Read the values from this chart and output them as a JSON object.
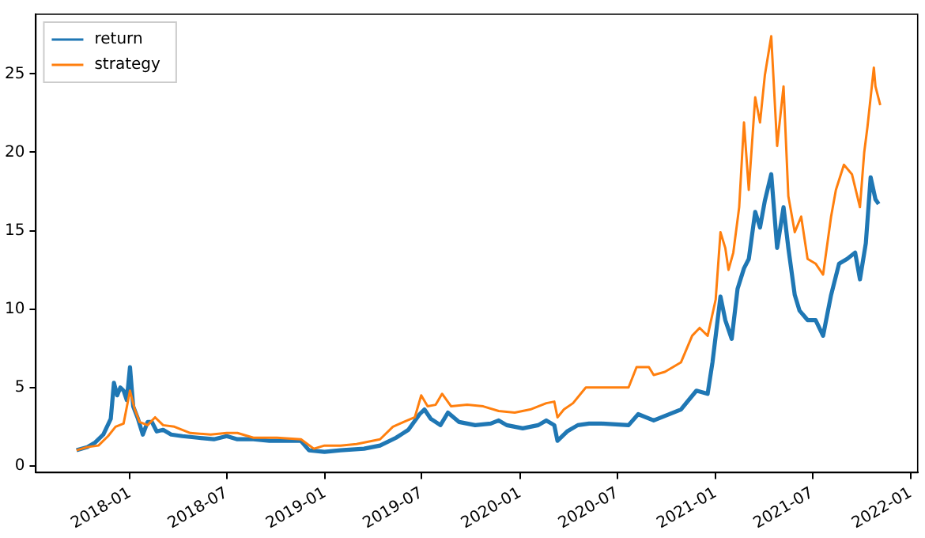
{
  "chart_data": {
    "type": "line",
    "xlim": [
      "2017-07-09",
      "2022-01-14"
    ],
    "xticks": [
      "2018-01",
      "2018-07",
      "2019-01",
      "2019-07",
      "2020-01",
      "2020-07",
      "2021-01",
      "2021-07",
      "2022-01"
    ],
    "ylim": [
      -0.43,
      28.8
    ],
    "yticks": [
      0,
      5,
      10,
      15,
      20,
      25
    ],
    "grid": false,
    "legend": "top left",
    "marker": "none",
    "line_style": "solid",
    "series": [
      {
        "name": "return",
        "color": "#1f77b4",
        "x": [
          "2017-09-23",
          "2017-10-13",
          "2017-10-28",
          "2017-11-12",
          "2017-11-26",
          "2017-12-02",
          "2017-12-08",
          "2017-12-14",
          "2017-12-20",
          "2017-12-26",
          "2018-01-01",
          "2018-01-07",
          "2018-01-16",
          "2018-01-25",
          "2018-02-03",
          "2018-02-11",
          "2018-02-20",
          "2018-03-04",
          "2018-03-19",
          "2018-04-09",
          "2018-05-08",
          "2018-06-07",
          "2018-07-01",
          "2018-07-21",
          "2018-08-20",
          "2018-09-19",
          "2018-11-17",
          "2018-12-02",
          "2018-12-31",
          "2019-01-30",
          "2019-03-15",
          "2019-04-14",
          "2019-05-14",
          "2019-06-06",
          "2019-06-27",
          "2019-07-06",
          "2019-07-18",
          "2019-08-05",
          "2019-08-19",
          "2019-09-09",
          "2019-10-09",
          "2019-11-07",
          "2019-11-22",
          "2019-12-07",
          "2020-01-06",
          "2020-02-04",
          "2020-02-19",
          "2020-03-05",
          "2020-03-11",
          "2020-03-29",
          "2020-04-18",
          "2020-05-09",
          "2020-06-02",
          "2020-07-22",
          "2020-08-09",
          "2020-09-07",
          "2020-10-28",
          "2020-11-26",
          "2020-12-17",
          "2020-12-26",
          "2021-01-10",
          "2021-01-19",
          "2021-01-31",
          "2021-02-11",
          "2021-02-23",
          "2021-03-04",
          "2021-03-16",
          "2021-03-25",
          "2021-04-03",
          "2021-04-15",
          "2021-04-26",
          "2021-05-08",
          "2021-05-17",
          "2021-05-29",
          "2021-06-07",
          "2021-06-22",
          "2021-07-07",
          "2021-07-21",
          "2021-08-05",
          "2021-08-20",
          "2021-09-04",
          "2021-09-19",
          "2021-09-28",
          "2021-10-09",
          "2021-10-18",
          "2021-10-27",
          "2021-11-02"
        ],
        "values": [
          1.0,
          1.2,
          1.5,
          2.0,
          3.0,
          5.3,
          4.5,
          5.0,
          4.8,
          4.2,
          6.3,
          3.8,
          3.0,
          2.0,
          2.8,
          2.8,
          2.2,
          2.3,
          2.0,
          1.9,
          1.8,
          1.7,
          1.9,
          1.7,
          1.7,
          1.6,
          1.6,
          1.0,
          0.9,
          1.0,
          1.1,
          1.3,
          1.8,
          2.3,
          3.3,
          3.6,
          3.0,
          2.6,
          3.4,
          2.8,
          2.6,
          2.7,
          2.9,
          2.6,
          2.4,
          2.6,
          2.9,
          2.6,
          1.6,
          2.2,
          2.6,
          2.7,
          2.7,
          2.6,
          3.3,
          2.9,
          3.6,
          4.8,
          4.6,
          6.6,
          10.8,
          9.3,
          8.1,
          11.3,
          12.6,
          13.2,
          16.2,
          15.2,
          16.9,
          18.6,
          13.9,
          16.5,
          13.9,
          10.9,
          9.9,
          9.3,
          9.3,
          8.3,
          10.9,
          12.9,
          13.2,
          13.6,
          11.9,
          14.2,
          18.4,
          17.0,
          16.7
        ]
      },
      {
        "name": "strategy",
        "color": "#ff7f0e",
        "x": [
          "2017-09-23",
          "2017-10-13",
          "2017-11-03",
          "2017-11-21",
          "2017-12-05",
          "2017-12-20",
          "2018-01-01",
          "2018-01-10",
          "2018-01-19",
          "2018-02-03",
          "2018-02-17",
          "2018-03-04",
          "2018-03-25",
          "2018-04-24",
          "2018-06-01",
          "2018-07-01",
          "2018-07-21",
          "2018-08-20",
          "2018-10-03",
          "2018-11-17",
          "2018-12-11",
          "2018-12-31",
          "2019-01-30",
          "2019-03-01",
          "2019-04-14",
          "2019-05-08",
          "2019-05-28",
          "2019-06-18",
          "2019-06-30",
          "2019-07-12",
          "2019-07-27",
          "2019-08-08",
          "2019-08-25",
          "2019-09-24",
          "2019-10-24",
          "2019-11-22",
          "2019-12-22",
          "2020-01-20",
          "2020-02-19",
          "2020-03-05",
          "2020-03-11",
          "2020-03-23",
          "2020-04-09",
          "2020-05-03",
          "2020-06-02",
          "2020-07-22",
          "2020-08-06",
          "2020-08-29",
          "2020-09-07",
          "2020-09-28",
          "2020-10-28",
          "2020-11-18",
          "2020-12-02",
          "2020-12-17",
          "2021-01-01",
          "2021-01-10",
          "2021-01-19",
          "2021-01-25",
          "2021-02-03",
          "2021-02-14",
          "2021-02-23",
          "2021-03-04",
          "2021-03-16",
          "2021-03-25",
          "2021-04-03",
          "2021-04-15",
          "2021-04-26",
          "2021-05-08",
          "2021-05-17",
          "2021-05-29",
          "2021-06-10",
          "2021-06-22",
          "2021-07-07",
          "2021-07-21",
          "2021-08-05",
          "2021-08-14",
          "2021-08-29",
          "2021-09-13",
          "2021-09-28",
          "2021-10-06",
          "2021-10-12",
          "2021-10-24",
          "2021-10-27",
          "2021-11-05"
        ],
        "values": [
          1.0,
          1.2,
          1.3,
          1.9,
          2.5,
          2.7,
          4.8,
          3.6,
          2.8,
          2.6,
          3.1,
          2.6,
          2.5,
          2.1,
          2.0,
          2.1,
          2.1,
          1.8,
          1.8,
          1.7,
          1.1,
          1.3,
          1.3,
          1.4,
          1.7,
          2.5,
          2.8,
          3.1,
          4.5,
          3.8,
          3.9,
          4.6,
          3.8,
          3.9,
          3.8,
          3.5,
          3.4,
          3.6,
          4.0,
          4.1,
          3.1,
          3.6,
          4.0,
          5.0,
          5.0,
          5.0,
          6.3,
          6.3,
          5.8,
          6.0,
          6.6,
          8.3,
          8.8,
          8.3,
          10.6,
          14.9,
          13.9,
          12.5,
          13.6,
          16.5,
          21.9,
          17.6,
          23.5,
          21.9,
          24.9,
          27.4,
          20.4,
          24.2,
          17.2,
          14.9,
          15.9,
          13.2,
          12.9,
          12.2,
          15.9,
          17.6,
          19.2,
          18.6,
          16.5,
          20.0,
          21.6,
          25.4,
          24.2,
          23.0
        ]
      }
    ]
  }
}
